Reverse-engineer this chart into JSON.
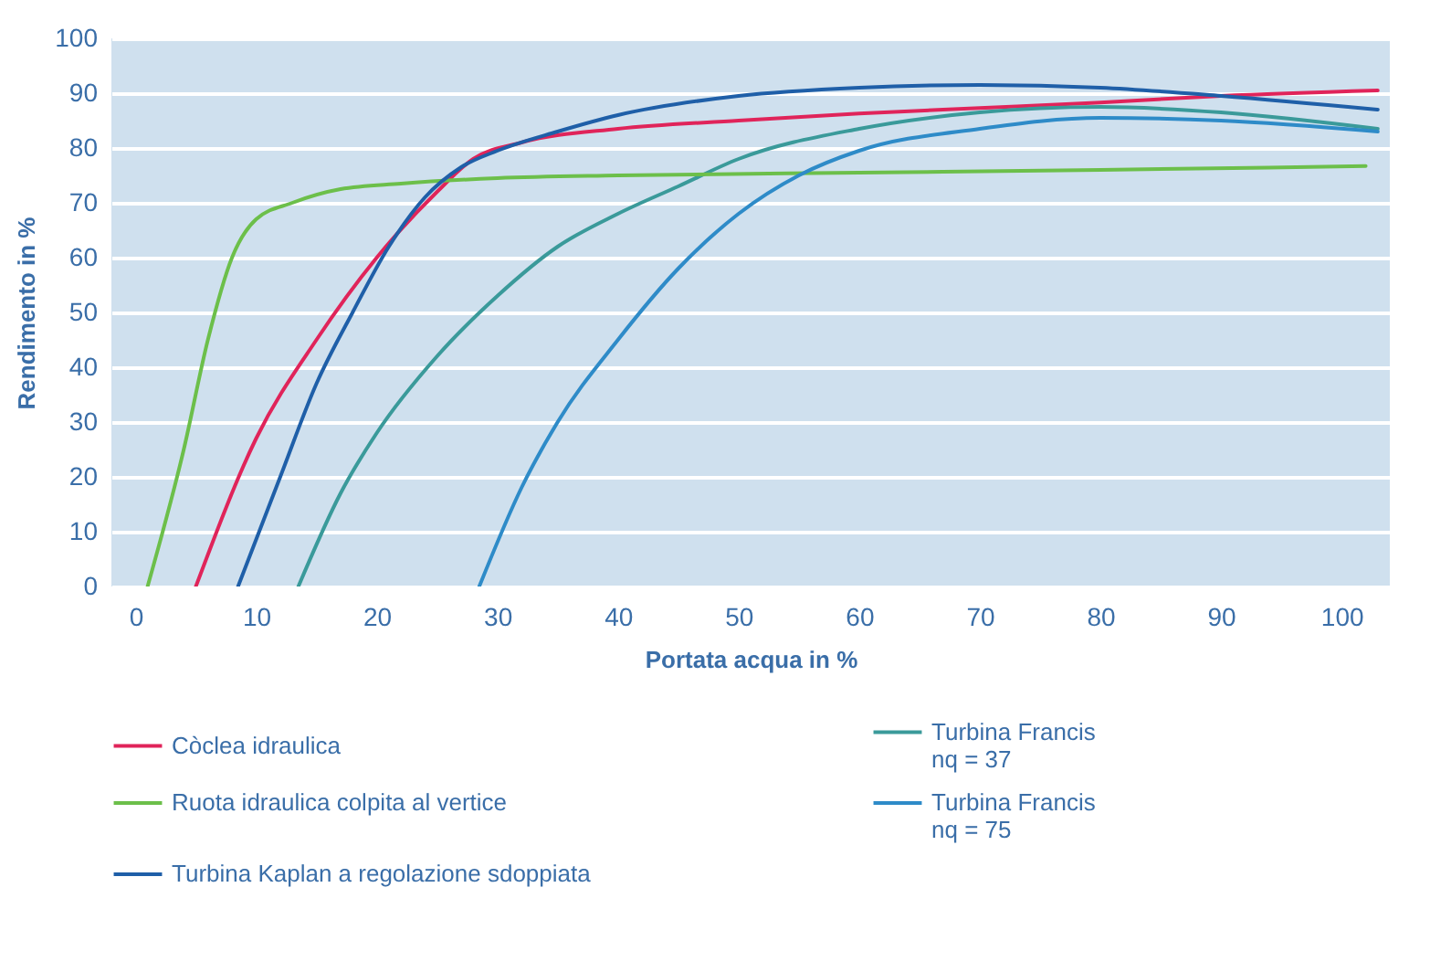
{
  "chart_data": {
    "type": "line",
    "xlabel": "Portata acqua in %",
    "ylabel": "Rendimento in %",
    "xlim": [
      -2,
      104
    ],
    "ylim": [
      0,
      100
    ],
    "xticks": [
      0,
      10,
      20,
      30,
      40,
      50,
      60,
      70,
      80,
      90,
      100
    ],
    "yticks": [
      0,
      10,
      20,
      30,
      40,
      50,
      60,
      70,
      80,
      90,
      100
    ],
    "grid": "y",
    "legend": "bottom",
    "line_style": "solid",
    "marker": "none",
    "series": [
      {
        "name": "Còclea idraulica",
        "color": "#e0245a",
        "x": [
          5,
          10,
          15,
          20,
          25,
          28,
          32,
          40,
          50,
          60,
          70,
          80,
          90,
          103
        ],
        "values": [
          0,
          27,
          45,
          60,
          72,
          78,
          81,
          83.5,
          85,
          86.3,
          87.3,
          88.3,
          89.5,
          90.5
        ]
      },
      {
        "name": "Turbina Francis\nnq = 37",
        "color": "#3a9a9a",
        "x": [
          13.5,
          17,
          20,
          25,
          30,
          35,
          40,
          45,
          50,
          60,
          70,
          80,
          90,
          103
        ],
        "values": [
          0,
          17,
          28,
          42,
          53,
          62,
          68,
          73,
          78,
          83.5,
          86.5,
          87.5,
          86.5,
          83.5
        ]
      },
      {
        "name": "Ruota idraulica colpita al vertice",
        "color": "#6cbf4a",
        "x": [
          1,
          4,
          6,
          8,
          10,
          13,
          17,
          22,
          30,
          40,
          60,
          80,
          102
        ],
        "values": [
          0,
          25,
          45,
          60,
          67,
          70,
          72.5,
          73.5,
          74.5,
          75,
          75.5,
          76,
          76.7
        ]
      },
      {
        "name": "Turbina Francis\nnq = 75",
        "color": "#2e8bc8",
        "x": [
          28.5,
          32,
          35,
          40,
          45,
          50,
          55,
          60,
          70,
          80,
          90,
          103
        ],
        "values": [
          0,
          18,
          30,
          45,
          58,
          68,
          75,
          79.5,
          83.5,
          85.5,
          85,
          83
        ]
      },
      {
        "name": "Turbina Kaplan a regolazione sdoppiata",
        "color": "#1f5fa8",
        "x": [
          8.5,
          12,
          15,
          18,
          21,
          24,
          27,
          30,
          35,
          40,
          50,
          60,
          70,
          80,
          90,
          103
        ],
        "values": [
          0,
          20,
          37,
          50,
          62,
          71,
          76.5,
          79.5,
          83,
          86,
          89.5,
          91,
          91.5,
          91,
          89.5,
          87
        ]
      }
    ]
  }
}
